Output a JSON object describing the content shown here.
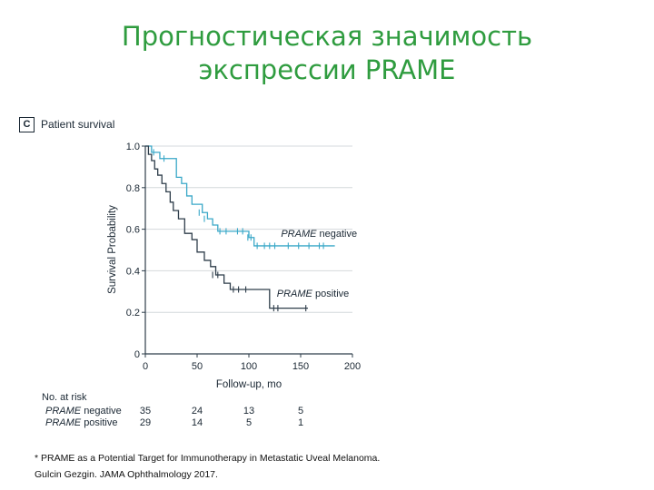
{
  "slide": {
    "title_line1": "Прогностическая значимость",
    "title_line2": "экспрессии PRAME"
  },
  "panel": {
    "letter": "C",
    "title": "Patient survival"
  },
  "chart_data": {
    "type": "line",
    "subtype": "kaplan-meier",
    "xlabel": "Follow-up, mo",
    "ylabel": "Survival Probability",
    "xlim": [
      0,
      200
    ],
    "ylim": [
      0,
      1.0
    ],
    "xticks": [
      0,
      50,
      100,
      150,
      200
    ],
    "yticks": [
      0,
      0.2,
      0.4,
      0.6,
      0.8,
      1.0
    ],
    "ytick_labels": [
      "0",
      "0.2",
      "0.4",
      "0.6",
      "0.8",
      "1.0"
    ],
    "grid": "horizontal",
    "series": [
      {
        "name": "PRAME negative",
        "color": "#3aa8c8",
        "steps": [
          [
            0,
            1.0
          ],
          [
            6,
            0.97
          ],
          [
            14,
            0.94
          ],
          [
            30,
            0.85
          ],
          [
            35,
            0.82
          ],
          [
            40,
            0.76
          ],
          [
            45,
            0.72
          ],
          [
            55,
            0.68
          ],
          [
            60,
            0.65
          ],
          [
            65,
            0.62
          ],
          [
            70,
            0.59
          ],
          [
            100,
            0.56
          ],
          [
            105,
            0.52
          ],
          [
            183,
            0.52
          ]
        ],
        "censored": [
          [
            8,
            0.97
          ],
          [
            18,
            0.94
          ],
          [
            52,
            0.68
          ],
          [
            57,
            0.65
          ],
          [
            72,
            0.59
          ],
          [
            78,
            0.59
          ],
          [
            89,
            0.59
          ],
          [
            94,
            0.59
          ],
          [
            99,
            0.56
          ],
          [
            102,
            0.56
          ],
          [
            108,
            0.52
          ],
          [
            115,
            0.52
          ],
          [
            120,
            0.52
          ],
          [
            125,
            0.52
          ],
          [
            138,
            0.52
          ],
          [
            148,
            0.52
          ],
          [
            158,
            0.52
          ],
          [
            168,
            0.52
          ],
          [
            172,
            0.52
          ]
        ]
      },
      {
        "name": "PRAME positive",
        "color": "#2e3d4a",
        "steps": [
          [
            0,
            1.0
          ],
          [
            3,
            0.96
          ],
          [
            6,
            0.93
          ],
          [
            9,
            0.89
          ],
          [
            12,
            0.86
          ],
          [
            16,
            0.82
          ],
          [
            20,
            0.78
          ],
          [
            24,
            0.73
          ],
          [
            27,
            0.69
          ],
          [
            32,
            0.65
          ],
          [
            38,
            0.58
          ],
          [
            45,
            0.55
          ],
          [
            50,
            0.49
          ],
          [
            57,
            0.45
          ],
          [
            63,
            0.42
          ],
          [
            68,
            0.38
          ],
          [
            76,
            0.34
          ],
          [
            82,
            0.31
          ],
          [
            120,
            0.22
          ],
          [
            157,
            0.22
          ]
        ],
        "censored": [
          [
            65,
            0.38
          ],
          [
            70,
            0.38
          ],
          [
            85,
            0.31
          ],
          [
            90,
            0.31
          ],
          [
            97,
            0.31
          ],
          [
            124,
            0.22
          ],
          [
            128,
            0.22
          ],
          [
            155,
            0.22
          ]
        ]
      }
    ],
    "risk_table": {
      "header": "No. at risk",
      "timepoints": [
        0,
        50,
        100,
        150
      ],
      "rows": [
        {
          "label": "PRAME negative",
          "values": [
            "35",
            "24",
            "13",
            "5"
          ]
        },
        {
          "label": "PRAME positive",
          "values": [
            "29",
            "14",
            "5",
            "1"
          ]
        }
      ]
    }
  },
  "citation": {
    "line1": "* PRAME as a Potential Target for Immunotherapy in Metastatic Uveal Melanoma.",
    "line2": "Gulcin Gezgin. JAMA Ophthalmology 2017."
  }
}
